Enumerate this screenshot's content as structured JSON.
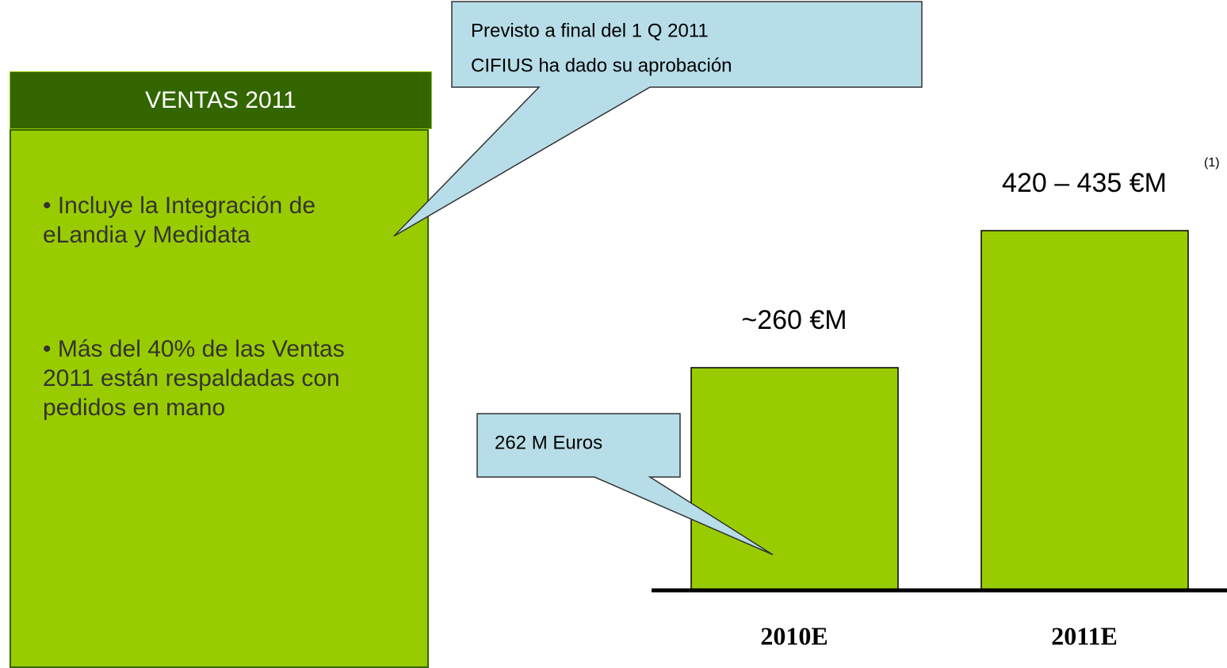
{
  "panel": {
    "title": "VENTAS 2011",
    "bullets": [
      "• Incluye la Integración de eLandia y Medidata",
      "• Más del 40% de las Ventas 2011 están respaldadas con pedidos en mano"
    ]
  },
  "callouts": [
    {
      "lines": [
        "Previsto a final del 1 Q 2011",
        "CIFIUS ha dado su aprobación"
      ]
    },
    {
      "lines": [
        "262 M Euros"
      ]
    }
  ],
  "chart_data": {
    "type": "bar",
    "categories": [
      "2010E",
      "2011E"
    ],
    "values": [
      260,
      420
    ],
    "value_labels": [
      "~260 €M",
      "420 – 435 €M"
    ],
    "color": "#99cc00",
    "annotations": [
      "(1)"
    ]
  }
}
